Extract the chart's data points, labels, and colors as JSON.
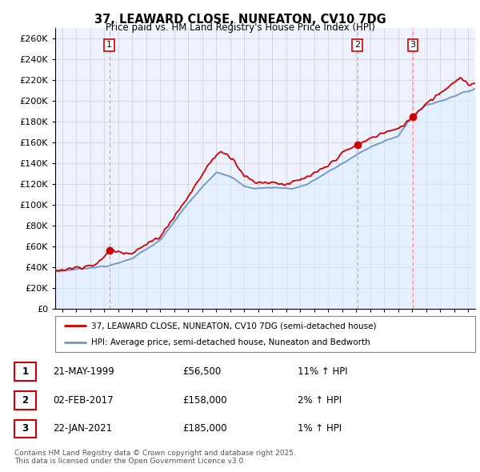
{
  "title": "37, LEAWARD CLOSE, NUNEATON, CV10 7DG",
  "subtitle": "Price paid vs. HM Land Registry's House Price Index (HPI)",
  "ylim": [
    0,
    270000
  ],
  "yticks": [
    0,
    20000,
    40000,
    60000,
    80000,
    100000,
    120000,
    140000,
    160000,
    180000,
    200000,
    220000,
    240000,
    260000
  ],
  "xlim_start": 1995.5,
  "xlim_end": 2025.5,
  "price_paid_color": "#cc0000",
  "hpi_color": "#6699cc",
  "hpi_fill_color": "#ddeeff",
  "transaction_marker_color": "#cc0000",
  "vline_color": "#ff8888",
  "transactions": [
    {
      "date_num": 1999.37,
      "price": 56500,
      "label": "1"
    },
    {
      "date_num": 2017.08,
      "price": 158000,
      "label": "2"
    },
    {
      "date_num": 2021.05,
      "price": 185000,
      "label": "3"
    }
  ],
  "legend_entry1": "37, LEAWARD CLOSE, NUNEATON, CV10 7DG (semi-detached house)",
  "legend_entry2": "HPI: Average price, semi-detached house, Nuneaton and Bedworth",
  "table_data": [
    {
      "num": "1",
      "date": "21-MAY-1999",
      "price": "£56,500",
      "hpi": "11% ↑ HPI"
    },
    {
      "num": "2",
      "date": "02-FEB-2017",
      "price": "£158,000",
      "hpi": "2% ↑ HPI"
    },
    {
      "num": "3",
      "date": "22-JAN-2021",
      "price": "£185,000",
      "hpi": "1% ↑ HPI"
    }
  ],
  "footnote": "Contains HM Land Registry data © Crown copyright and database right 2025.\nThis data is licensed under the Open Government Licence v3.0.",
  "background_color": "#ffffff",
  "plot_bg_color": "#eef2ff"
}
